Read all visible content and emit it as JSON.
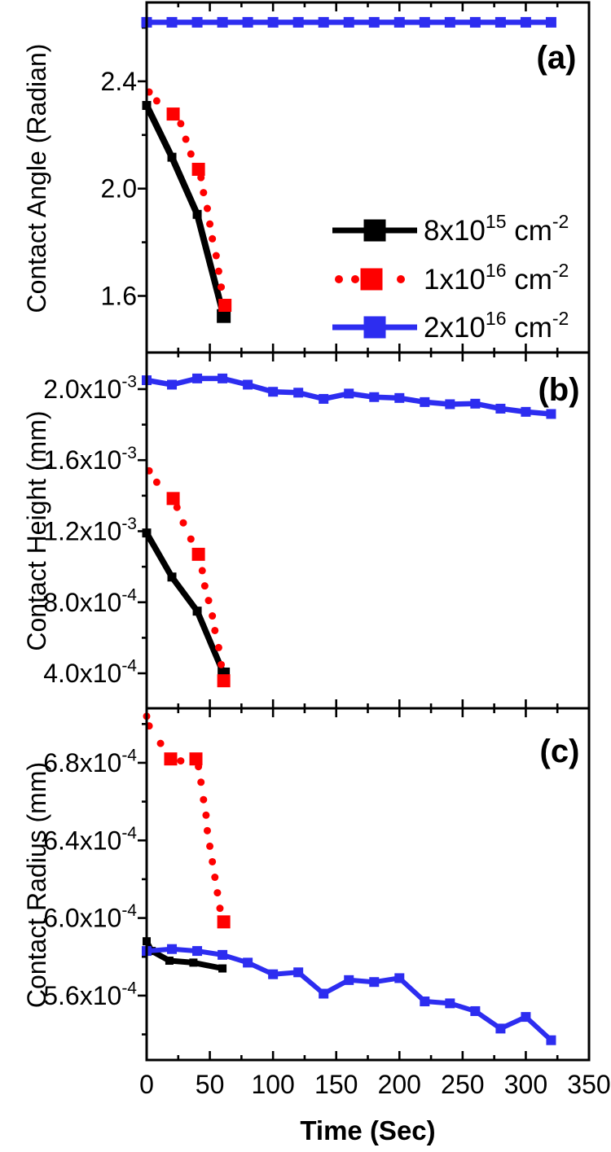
{
  "figure": {
    "xlabel": "Time (Sec)",
    "xlim": [
      0,
      350
    ],
    "x_ticks": [
      0,
      50,
      100,
      150,
      200,
      250,
      300,
      350
    ],
    "x_minor_ticks": [
      25,
      75,
      125,
      175,
      225,
      275,
      325
    ],
    "colors": {
      "series1": "#000000",
      "series2": "#fe0000",
      "series3": "#2d2df0"
    },
    "legend": {
      "items": [
        {
          "base": "8x10",
          "exp": "15",
          "unit": "cm",
          "unit_exp": "-2",
          "color": "#000000",
          "style": "line"
        },
        {
          "base": "1x10",
          "exp": "16",
          "unit": "cm",
          "unit_exp": "-2",
          "color": "#fe0000",
          "style": "dots"
        },
        {
          "base": "2x10",
          "exp": "16",
          "unit": "cm",
          "unit_exp": "-2",
          "color": "#2d2df0",
          "style": "line"
        }
      ]
    }
  },
  "chart_data": [
    {
      "type": "line",
      "panel": "a",
      "tag": "(a)",
      "ylabel": "Contact Angle (Radian)",
      "ylim": [
        1.389,
        2.694
      ],
      "yticks": [
        {
          "v": 2.4,
          "label": "2.4"
        },
        {
          "v": 2.0,
          "label": "2.0"
        },
        {
          "v": 1.6,
          "label": "1.6"
        }
      ],
      "yminor": [
        1.8,
        2.2,
        2.6
      ],
      "series": [
        {
          "name": "8x10^15 cm^-2",
          "color": "#000000",
          "style": "line",
          "points": [
            {
              "t": 0,
              "v": 2.31
            },
            {
              "t": 20,
              "v": 2.117
            },
            {
              "t": 40,
              "v": 1.904
            },
            {
              "t": 61,
              "v": 1.525,
              "big": true
            }
          ]
        },
        {
          "name": "1x10^16 cm^-2",
          "color": "#fe0000",
          "style": "dots",
          "points": [
            {
              "t": 2,
              "v": 2.36
            },
            {
              "t": 8,
              "v": 2.327
            },
            {
              "t": 21,
              "v": 2.278,
              "big": true
            },
            {
              "t": 27,
              "v": 2.242
            },
            {
              "t": 31,
              "v": 2.184
            },
            {
              "t": 35,
              "v": 2.129
            },
            {
              "t": 41,
              "v": 2.072,
              "big": true
            },
            {
              "t": 43,
              "v": 2.041
            },
            {
              "t": 45,
              "v": 1.985
            },
            {
              "t": 48,
              "v": 1.926
            },
            {
              "t": 50,
              "v": 1.868
            },
            {
              "t": 52,
              "v": 1.813
            },
            {
              "t": 55,
              "v": 1.75
            },
            {
              "t": 57,
              "v": 1.692
            },
            {
              "t": 59,
              "v": 1.633
            },
            {
              "t": 62,
              "v": 1.565,
              "big": true
            }
          ]
        },
        {
          "name": "2x10^16 cm^-2",
          "color": "#2d2df0",
          "style": "line",
          "points": [
            {
              "t": 0,
              "v": 2.62
            },
            {
              "t": 20,
              "v": 2.62
            },
            {
              "t": 40,
              "v": 2.62
            },
            {
              "t": 60,
              "v": 2.62
            },
            {
              "t": 80,
              "v": 2.62
            },
            {
              "t": 100,
              "v": 2.62
            },
            {
              "t": 120,
              "v": 2.62
            },
            {
              "t": 140,
              "v": 2.62
            },
            {
              "t": 160,
              "v": 2.62
            },
            {
              "t": 180,
              "v": 2.62
            },
            {
              "t": 200,
              "v": 2.62
            },
            {
              "t": 220,
              "v": 2.62
            },
            {
              "t": 240,
              "v": 2.62
            },
            {
              "t": 260,
              "v": 2.62
            },
            {
              "t": 280,
              "v": 2.62
            },
            {
              "t": 300,
              "v": 2.62
            },
            {
              "t": 320,
              "v": 2.62
            }
          ]
        }
      ]
    },
    {
      "type": "line",
      "panel": "b",
      "tag": "(b)",
      "ylabel": "Contact Height (mm)",
      "ylim": [
        0.000203,
        0.002206
      ],
      "yticks": [
        {
          "v": 0.002,
          "label": "2.0x10^-3"
        },
        {
          "v": 0.0016,
          "label": "1.6x10^-3"
        },
        {
          "v": 0.0012,
          "label": "1.2x10^-3"
        },
        {
          "v": 0.0008,
          "label": "8.0x10^-4"
        },
        {
          "v": 0.0004,
          "label": "4.0x10^-4"
        }
      ],
      "yminor": [
        0.0006,
        0.001,
        0.0014,
        0.0018
      ],
      "series": [
        {
          "name": "8x10^15 cm^-2",
          "color": "#000000",
          "style": "line",
          "points": [
            {
              "t": 0,
              "v": 0.00119
            },
            {
              "t": 20,
              "v": 0.000942
            },
            {
              "t": 40,
              "v": 0.00075
            },
            {
              "t": 61,
              "v": 0.000398,
              "big": true
            }
          ]
        },
        {
          "name": "1x10^16 cm^-2",
          "color": "#fe0000",
          "style": "dots",
          "points": [
            {
              "t": 2,
              "v": 0.00154
            },
            {
              "t": 8,
              "v": 0.001476
            },
            {
              "t": 21,
              "v": 0.001384,
              "big": true
            },
            {
              "t": 24,
              "v": 0.001334
            },
            {
              "t": 29,
              "v": 0.001247
            },
            {
              "t": 35,
              "v": 0.001156
            },
            {
              "t": 41,
              "v": 0.00107,
              "big": true
            },
            {
              "t": 44,
              "v": 0.000978
            },
            {
              "t": 46,
              "v": 0.000892
            },
            {
              "t": 49,
              "v": 0.00081
            },
            {
              "t": 52,
              "v": 0.000723
            },
            {
              "t": 54,
              "v": 0.000641
            },
            {
              "t": 57,
              "v": 0.000545
            },
            {
              "t": 59,
              "v": 0.000449
            },
            {
              "t": 61,
              "v": 0.000358,
              "big": true
            }
          ]
        },
        {
          "name": "2x10^16 cm^-2",
          "color": "#2d2df0",
          "style": "line",
          "points": [
            {
              "t": 0,
              "v": 0.00205
            },
            {
              "t": 20,
              "v": 0.002025
            },
            {
              "t": 40,
              "v": 0.00206
            },
            {
              "t": 60,
              "v": 0.00206
            },
            {
              "t": 80,
              "v": 0.002025
            },
            {
              "t": 100,
              "v": 0.001985
            },
            {
              "t": 120,
              "v": 0.00198
            },
            {
              "t": 140,
              "v": 0.001945
            },
            {
              "t": 160,
              "v": 0.001975
            },
            {
              "t": 180,
              "v": 0.001955
            },
            {
              "t": 200,
              "v": 0.00195
            },
            {
              "t": 220,
              "v": 0.001927
            },
            {
              "t": 240,
              "v": 0.001915
            },
            {
              "t": 260,
              "v": 0.001918
            },
            {
              "t": 280,
              "v": 0.00189
            },
            {
              "t": 300,
              "v": 0.001872
            },
            {
              "t": 320,
              "v": 0.00186
            }
          ]
        }
      ]
    },
    {
      "type": "line",
      "panel": "c",
      "tag": "(c)",
      "ylabel": "Contact Radius (mm)",
      "ylim": [
        0.0005268,
        0.0007081
      ],
      "yticks": [
        {
          "v": 0.00068,
          "label": "6.8x10^-4"
        },
        {
          "v": 0.00064,
          "label": "6.4x10^-4"
        },
        {
          "v": 0.0006,
          "label": "6.0x10^-4"
        },
        {
          "v": 0.00056,
          "label": "5.6x10^-4"
        }
      ],
      "yminor": [
        0.00054,
        0.00058,
        0.00062,
        0.00066,
        0.0007
      ],
      "series": [
        {
          "name": "8x10^15 cm^-2",
          "color": "#000000",
          "style": "line",
          "points": [
            {
              "t": 0,
              "v": 0.000588
            },
            {
              "t": 4,
              "v": 0.000583
            },
            {
              "t": 18,
              "v": 0.000578
            },
            {
              "t": 37,
              "v": 0.000577
            },
            {
              "t": 60,
              "v": 0.000574
            }
          ]
        },
        {
          "name": "1x10^16 cm^-2",
          "color": "#fe0000",
          "style": "dots",
          "points": [
            {
              "t": 0,
              "v": 0.000704
            },
            {
              "t": 2,
              "v": 0.000699
            },
            {
              "t": 11,
              "v": 0.00069
            },
            {
              "t": 19,
              "v": 0.000682,
              "big": true
            },
            {
              "t": 27,
              "v": 0.000681
            },
            {
              "t": 39,
              "v": 0.000682,
              "big": true
            },
            {
              "t": 41,
              "v": 0.000678
            },
            {
              "t": 43,
              "v": 0.00067
            },
            {
              "t": 45,
              "v": 0.000661
            },
            {
              "t": 47,
              "v": 0.000653
            },
            {
              "t": 48,
              "v": 0.000645
            },
            {
              "t": 50,
              "v": 0.000637
            },
            {
              "t": 52,
              "v": 0.000629
            },
            {
              "t": 54,
              "v": 0.000621
            },
            {
              "t": 56,
              "v": 0.000613
            },
            {
              "t": 58,
              "v": 0.000605
            },
            {
              "t": 61,
              "v": 0.000598,
              "big": true
            }
          ]
        },
        {
          "name": "2x10^16 cm^-2",
          "color": "#2d2df0",
          "style": "line",
          "points": [
            {
              "t": 0,
              "v": 0.000583
            },
            {
              "t": 20,
              "v": 0.000584
            },
            {
              "t": 40,
              "v": 0.000583
            },
            {
              "t": 60,
              "v": 0.000581
            },
            {
              "t": 80,
              "v": 0.000577
            },
            {
              "t": 100,
              "v": 0.000571
            },
            {
              "t": 120,
              "v": 0.000572
            },
            {
              "t": 140,
              "v": 0.000561
            },
            {
              "t": 160,
              "v": 0.000568
            },
            {
              "t": 180,
              "v": 0.000567
            },
            {
              "t": 200,
              "v": 0.000569
            },
            {
              "t": 220,
              "v": 0.000557
            },
            {
              "t": 240,
              "v": 0.000556
            },
            {
              "t": 260,
              "v": 0.000552
            },
            {
              "t": 280,
              "v": 0.000543
            },
            {
              "t": 300,
              "v": 0.000549
            },
            {
              "t": 320,
              "v": 0.000537
            }
          ]
        }
      ]
    }
  ]
}
